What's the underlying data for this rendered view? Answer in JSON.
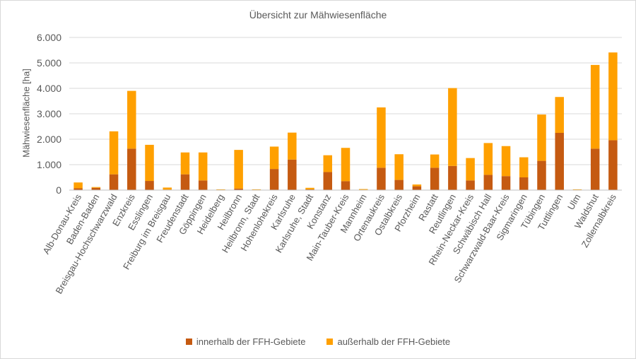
{
  "chart_data": {
    "type": "bar",
    "stacked": true,
    "title": "Übersicht zur Mähwiesenfläche",
    "xlabel": "",
    "ylabel": "Mähwiesenfläche [ha]",
    "ylim": [
      0,
      6000
    ],
    "yticks": [
      "0",
      "1.000",
      "2.000",
      "3.000",
      "4.000",
      "5.000",
      "6.000"
    ],
    "grid": true,
    "legend_position": "bottom",
    "categories": [
      "Alb-Donau-Kreis",
      "Baden-Baden",
      "Breisgau-Hochschwarzwald",
      "Enzkreis",
      "Esslingen",
      "Freiburg im Breisgau",
      "Freudenstadt",
      "Göppingen",
      "Heidelberg",
      "Heilbronn",
      "Heilbronn, Stadt",
      "Hohenlohekreis",
      "Karlsruhe",
      "Karlsruhe, Stadt",
      "Konstanz",
      "Main-Tauber-Kreis",
      "Mannheim",
      "Ortenaukreis",
      "Ostalbkreis",
      "Pforzheim",
      "Rastatt",
      "Reutlingen",
      "Rhein-Neckar-Kreis",
      "Schwäbisch Hall",
      "Schwarzwald-Baar-Kreis",
      "Sigmaringen",
      "Tübingen",
      "Tuttlingen",
      "Ulm",
      "Waldshut",
      "Zollernalbkreis"
    ],
    "series": [
      {
        "name": "innerhalb der FFH-Gebiete",
        "color": "#c55a11",
        "values": [
          70,
          90,
          620,
          1630,
          360,
          20,
          620,
          380,
          10,
          60,
          10,
          830,
          1200,
          30,
          710,
          350,
          10,
          880,
          400,
          150,
          880,
          950,
          380,
          600,
          550,
          500,
          1150,
          2250,
          10,
          1630,
          1960
        ]
      },
      {
        "name": "außerhalb der FFH-Gebiete",
        "color": "#ffa000",
        "values": [
          230,
          30,
          1690,
          2270,
          1420,
          80,
          860,
          1100,
          20,
          1520,
          20,
          880,
          1060,
          60,
          660,
          1310,
          30,
          2370,
          1010,
          70,
          520,
          3060,
          880,
          1250,
          1180,
          790,
          1820,
          1410,
          20,
          3290,
          3450
        ]
      }
    ]
  }
}
